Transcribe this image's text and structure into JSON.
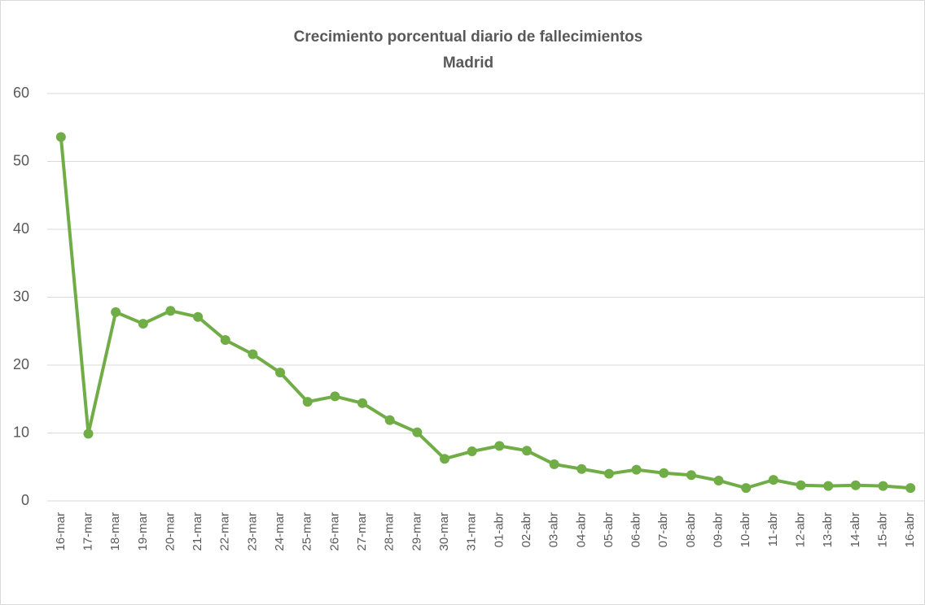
{
  "chart_data": {
    "type": "line",
    "title": "Crecimiento porcentual diario de fallecimientos",
    "subtitle": "Madrid",
    "categories": [
      "16-mar",
      "17-mar",
      "18-mar",
      "19-mar",
      "20-mar",
      "21-mar",
      "22-mar",
      "23-mar",
      "24-mar",
      "25-mar",
      "26-mar",
      "27-mar",
      "28-mar",
      "29-mar",
      "30-mar",
      "31-mar",
      "01-abr",
      "02-abr",
      "03-abr",
      "04-abr",
      "05-abr",
      "06-abr",
      "07-abr",
      "08-abr",
      "09-abr",
      "10-abr",
      "11-abr",
      "12-abr",
      "13-abr",
      "14-abr",
      "15-abr",
      "16-abr"
    ],
    "series": [
      {
        "name": "Madrid",
        "color": "#70ad47",
        "values": [
          53.6,
          9.9,
          27.8,
          26.1,
          28.0,
          27.1,
          23.7,
          21.6,
          18.9,
          14.6,
          15.4,
          14.4,
          11.9,
          10.1,
          6.2,
          7.3,
          8.1,
          7.4,
          5.4,
          4.7,
          4.0,
          4.6,
          4.1,
          3.8,
          3.0,
          1.9,
          3.1,
          2.3,
          2.2,
          2.3,
          2.2,
          1.9
        ]
      }
    ],
    "ylim": [
      0,
      60
    ],
    "yticks": [
      0,
      10,
      20,
      30,
      40,
      50,
      60
    ],
    "grid": true
  }
}
